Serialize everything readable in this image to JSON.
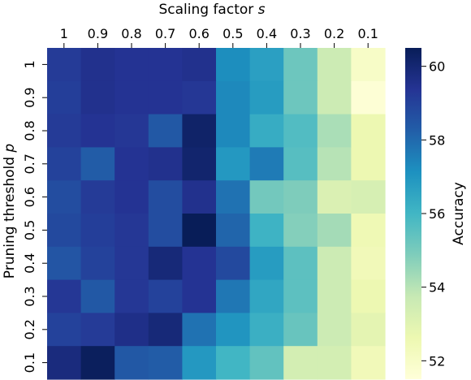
{
  "chart_data": {
    "type": "heatmap",
    "title": "",
    "xlabel": "Scaling factor",
    "xlabel_var": "s",
    "ylabel": "Pruning threshold",
    "ylabel_var": "p",
    "x_categories": [
      "1",
      "0.9",
      "0.8",
      "0.7",
      "0.6",
      "0.5",
      "0.4",
      "0.3",
      "0.2",
      "0.1"
    ],
    "y_categories": [
      "1",
      "0.9",
      "0.8",
      "0.7",
      "0.6",
      "0.5",
      "0.4",
      "0.3",
      "0.2",
      "0.1"
    ],
    "values": [
      [
        59.2,
        59.5,
        59.4,
        59.4,
        59.5,
        57.2,
        56.7,
        55.2,
        53.6,
        52.0
      ],
      [
        59.1,
        59.5,
        59.4,
        59.4,
        59.3,
        57.3,
        56.8,
        55.2,
        53.6,
        51.6
      ],
      [
        59.2,
        59.4,
        59.3,
        58.4,
        60.2,
        57.3,
        56.3,
        55.7,
        54.2,
        52.6
      ],
      [
        59.0,
        58.3,
        59.4,
        59.5,
        60.1,
        56.9,
        57.6,
        55.6,
        54.0,
        52.6
      ],
      [
        58.7,
        59.2,
        59.4,
        58.7,
        59.5,
        57.8,
        55.1,
        54.9,
        53.2,
        53.3
      ],
      [
        58.8,
        59.1,
        59.3,
        58.7,
        60.5,
        58.1,
        56.1,
        54.8,
        54.3,
        52.5
      ],
      [
        58.5,
        59.0,
        59.3,
        59.9,
        59.4,
        58.8,
        56.8,
        55.5,
        53.6,
        52.4
      ],
      [
        59.3,
        58.4,
        59.3,
        59.0,
        59.4,
        57.7,
        56.5,
        55.5,
        53.6,
        52.6
      ],
      [
        59.0,
        59.2,
        59.6,
        59.9,
        57.8,
        57.0,
        56.2,
        55.3,
        53.6,
        52.9
      ],
      [
        59.8,
        60.4,
        58.4,
        58.3,
        56.9,
        56.0,
        55.4,
        53.4,
        53.4,
        52.4
      ]
    ],
    "vmin": 51.5,
    "vmax": 60.5,
    "colorbar": {
      "label": "Accuracy",
      "ticks": [
        52,
        54,
        56,
        58,
        60
      ]
    },
    "colormap": [
      "#ffffd9",
      "#edf8b1",
      "#c7e9b4",
      "#7fcdbb",
      "#41b6c4",
      "#1d91c0",
      "#225ea8",
      "#253494",
      "#081d58"
    ]
  }
}
